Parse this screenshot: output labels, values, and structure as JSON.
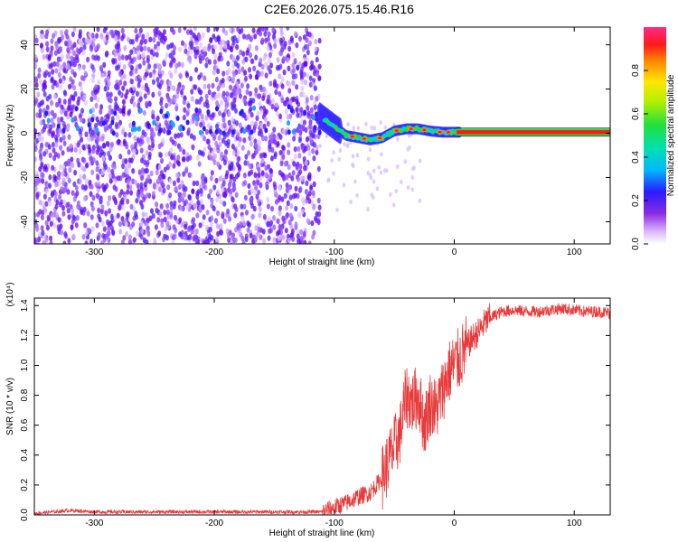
{
  "title": "C2E6.2026.075.15.46.R16",
  "chart_data": [
    {
      "type": "heatmap",
      "xlabel": "Height of straight line (km)",
      "ylabel": "Frequency (Hz)",
      "xlim": [
        -350,
        130
      ],
      "ylim": [
        -50,
        48
      ],
      "xticks": [
        -300,
        -200,
        -100,
        0,
        100
      ],
      "yticks": [
        -40,
        -20,
        0,
        20,
        40
      ],
      "noise_region_x": [
        -350,
        -112
      ],
      "signal_trace": {
        "x": [
          -112,
          -100,
          -90,
          -80,
          -70,
          -60,
          -50,
          -40,
          -30,
          -20,
          -10,
          0,
          130
        ],
        "frequency": [
          8,
          3,
          -1,
          -2,
          -3,
          -2,
          1,
          2,
          2,
          1,
          0.5,
          0.5,
          0.5
        ]
      },
      "colorbar": {
        "label": "Normalized spectral amplitude",
        "range": [
          0.0,
          1.0
        ],
        "ticks": [
          0.0,
          0.2,
          0.4,
          0.6,
          0.8
        ]
      }
    },
    {
      "type": "line",
      "xlabel": "Height of straight line (km)",
      "ylabel": "SNR (10 * v/v)",
      "scale_note": "(x10⁴)",
      "xlim": [
        -350,
        130
      ],
      "ylim": [
        0,
        1.45
      ],
      "xticks": [
        -300,
        -200,
        -100,
        0,
        100
      ],
      "yticks": [
        0.0,
        0.2,
        0.4,
        0.6,
        0.8,
        1.0,
        1.2,
        1.4
      ],
      "color": "#e83a3a",
      "series": [
        {
          "x": [
            -350,
            -320,
            -300,
            -250,
            -200,
            -150,
            -110,
            -100,
            -90,
            -80,
            -70,
            -60,
            -50,
            -45,
            -40,
            -35,
            -30,
            -25,
            -20,
            -15,
            -10,
            -5,
            0,
            5,
            10,
            15,
            20,
            25,
            30,
            40,
            50,
            60,
            70,
            80,
            90,
            100,
            110,
            120,
            130
          ],
          "values": [
            0.01,
            0.03,
            0.02,
            0.02,
            0.02,
            0.02,
            0.02,
            0.05,
            0.08,
            0.12,
            0.15,
            0.25,
            0.45,
            0.55,
            0.8,
            0.75,
            0.8,
            0.6,
            0.75,
            0.7,
            0.82,
            0.95,
            1.0,
            1.05,
            1.12,
            1.18,
            1.22,
            1.28,
            1.32,
            1.36,
            1.37,
            1.36,
            1.36,
            1.37,
            1.38,
            1.37,
            1.36,
            1.36,
            1.35
          ]
        }
      ]
    }
  ]
}
